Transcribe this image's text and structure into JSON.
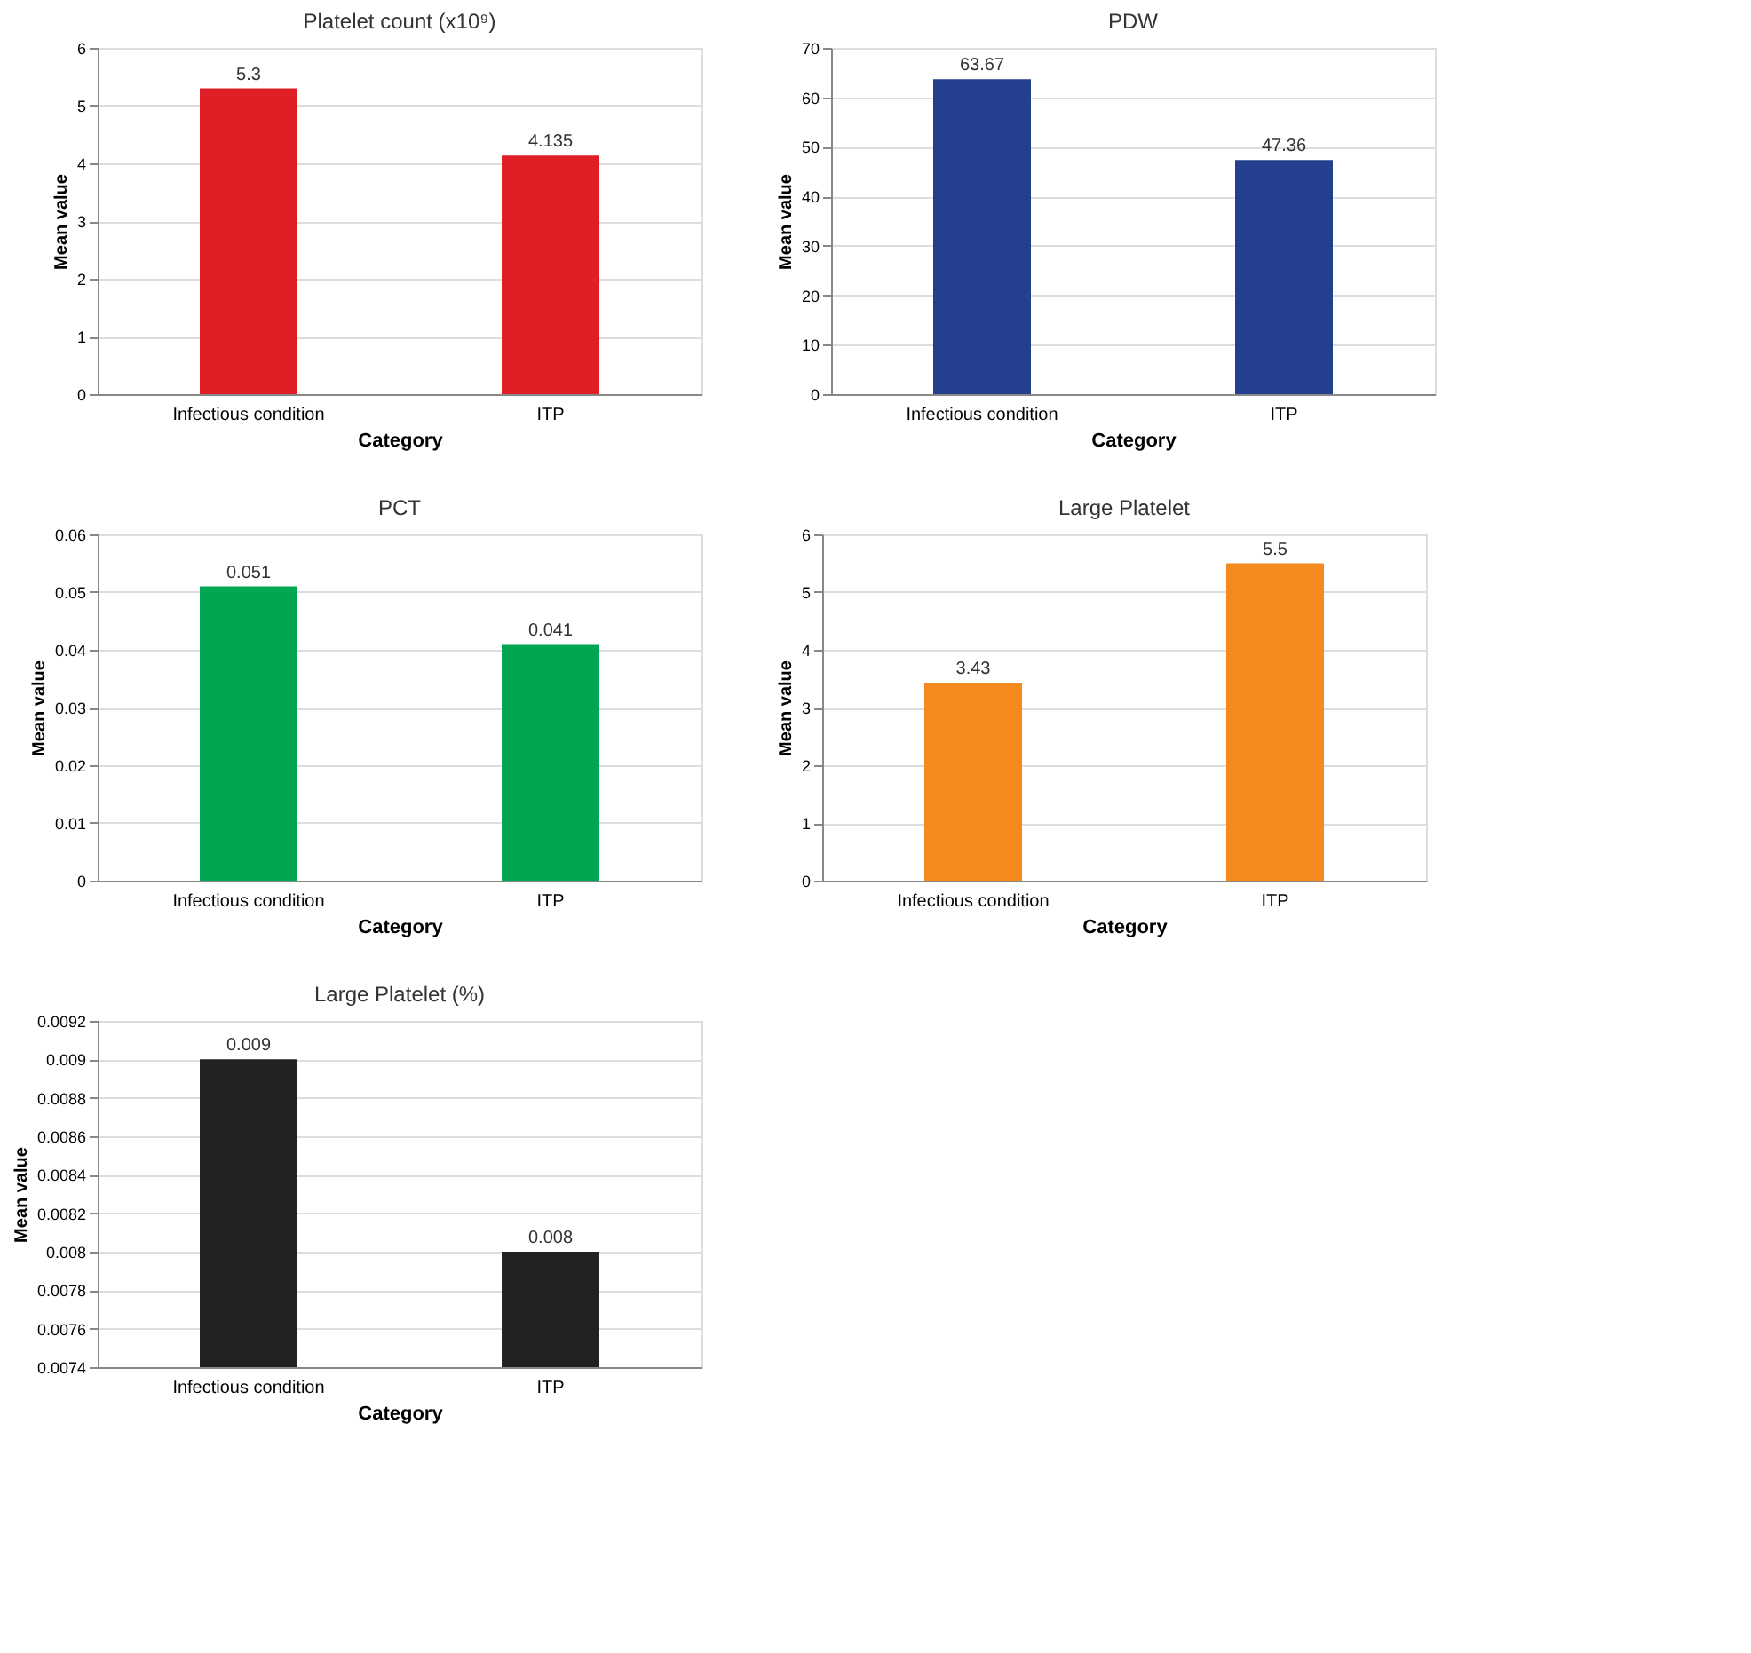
{
  "chart_data": [
    {
      "type": "bar",
      "title": "Platelet count (x10⁹)",
      "xlabel": "Category",
      "ylabel": "Mean value",
      "categories": [
        "Infectious condition",
        "ITP"
      ],
      "values": [
        5.3,
        4.135
      ],
      "color": "#e01e26",
      "ylim": [
        0,
        6
      ],
      "yticks": [
        0,
        1,
        2,
        3,
        4,
        5,
        6
      ],
      "grid": "y",
      "data_labels": true
    },
    {
      "type": "bar",
      "title": "PDW",
      "xlabel": "Category",
      "ylabel": "Mean value",
      "categories": [
        "Infectious condition",
        "ITP"
      ],
      "values": [
        63.67,
        47.36
      ],
      "color": "#233f8e",
      "ylim": [
        0,
        70
      ],
      "yticks": [
        0,
        10,
        20,
        30,
        40,
        50,
        60,
        70
      ],
      "grid": "y",
      "data_labels": true
    },
    {
      "type": "bar",
      "title": "PCT",
      "xlabel": "Category",
      "ylabel": "Mean value",
      "categories": [
        "Infectious condition",
        "ITP"
      ],
      "values": [
        0.051,
        0.041
      ],
      "color": "#00a651",
      "ylim": [
        0,
        0.06
      ],
      "yticks": [
        0,
        0.01,
        0.02,
        0.03,
        0.04,
        0.05,
        0.06
      ],
      "grid": "y",
      "data_labels": true
    },
    {
      "type": "bar",
      "title": "Large Platelet",
      "xlabel": "Category",
      "ylabel": "Mean value",
      "categories": [
        "Infectious condition",
        "ITP"
      ],
      "values": [
        3.43,
        5.5
      ],
      "color": "#f48a1e",
      "ylim": [
        0,
        6
      ],
      "yticks": [
        0,
        1,
        2,
        3,
        4,
        5,
        6
      ],
      "grid": "y",
      "data_labels": true
    },
    {
      "type": "bar",
      "title": "Large Platelet (%)",
      "xlabel": "Category",
      "ylabel": "Mean value",
      "categories": [
        "Infectious condition",
        "ITP"
      ],
      "values": [
        0.009,
        0.008
      ],
      "color": "#222222",
      "ylim": [
        0.0074,
        0.0092
      ],
      "yticks": [
        0.0074,
        0.0076,
        0.0078,
        0.008,
        0.0082,
        0.0084,
        0.0086,
        0.0088,
        0.009,
        0.0092
      ],
      "grid": "y",
      "data_labels": true
    }
  ]
}
